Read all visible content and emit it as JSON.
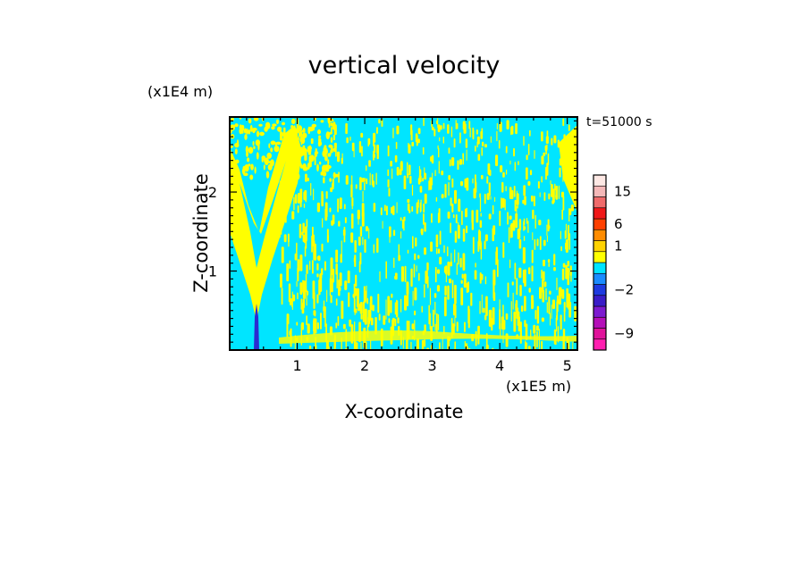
{
  "chart_data": {
    "type": "heatmap",
    "title": "vertical velocity",
    "xlabel": "X-coordinate",
    "ylabel": "Z-coordinate",
    "x_unit_label": "(x1E5 m)",
    "y_unit_label": "(x1E4 m)",
    "time_label": "t=51000 s",
    "xlim": [
      0,
      5.15
    ],
    "ylim": [
      0,
      2.95
    ],
    "xticks": [
      1,
      2,
      3,
      4,
      5
    ],
    "yticks": [
      1,
      2
    ],
    "grid": false,
    "colorbar": {
      "tick_labels": [
        {
          "label": "15",
          "value": 15
        },
        {
          "label": "6",
          "value": 6
        },
        {
          "label": "1",
          "value": 1
        },
        {
          "label": "−2",
          "value": -2
        },
        {
          "label": "−9",
          "value": -9
        }
      ],
      "levels": [
        {
          "value": -12,
          "color": "#ff1fb0"
        },
        {
          "value": -9,
          "color": "#e0129a"
        },
        {
          "value": -6,
          "color": "#b40fb8"
        },
        {
          "value": -4,
          "color": "#7d1ad0"
        },
        {
          "value": -3,
          "color": "#3a1cc8"
        },
        {
          "value": -2,
          "color": "#1e3ae0"
        },
        {
          "value": -1,
          "color": "#1a8cff"
        },
        {
          "value": 0,
          "color": "#00e5ff"
        },
        {
          "value": 0.5,
          "color": "#ffff00"
        },
        {
          "value": 1,
          "color": "#ffd200"
        },
        {
          "value": 3,
          "color": "#ff8c00"
        },
        {
          "value": 6,
          "color": "#ff4000"
        },
        {
          "value": 9,
          "color": "#f01818"
        },
        {
          "value": 12,
          "color": "#f06b6b"
        },
        {
          "value": 15,
          "color": "#f4b8b8"
        },
        {
          "value": 18,
          "color": "#fde8e4"
        }
      ]
    },
    "field_colors": {
      "downdraft": "#00e5ff",
      "updraft": "#ffff00",
      "jet_core": "#2b2bd0"
    }
  }
}
